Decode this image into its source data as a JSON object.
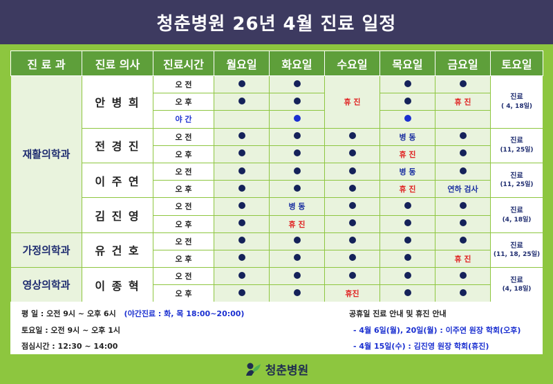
{
  "title": "청춘병원 26년 4월 진료 일정",
  "headers": [
    "진 료 과",
    "진료 의사",
    "진료시간",
    "월요일",
    "화요일",
    "수요일",
    "목요일",
    "금요일",
    "토요일"
  ],
  "depts": {
    "rehab": "재활의학과",
    "family": "가정의학과",
    "imaging": "영상의학과"
  },
  "doctors": {
    "d1": "안 병 희",
    "d2": "전 경 진",
    "d3": "이 주 연",
    "d4": "김 진 영",
    "d5": "유 건 호",
    "d6": "이 종 혁"
  },
  "times": {
    "am": "오 전",
    "pm": "오 후",
    "night": "야 간"
  },
  "statuses": {
    "holiday": "휴 진",
    "holiday2": "휴진",
    "ward": "병 동",
    "exam": "연하 검사"
  },
  "saturday": {
    "d1": {
      "label": "진료",
      "dates": "( 4, 18일)"
    },
    "d2": {
      "label": "진료",
      "dates": "(11, 25일)"
    },
    "d3": {
      "label": "진료",
      "dates": "(11, 25일)"
    },
    "d4": {
      "label": "진료",
      "dates": "(4, 18일)"
    },
    "d5": {
      "label": "진료",
      "dates": "(11, 18, 25일)"
    },
    "d6": {
      "label": "진료",
      "dates": "(4, 18일)"
    }
  },
  "notes": {
    "weekday": "평    일 : 오전 9시 ~ 오후 6시",
    "night_note": "(야간진료 : 화, 목 18:00~20:00)",
    "saturday": "토요일 : 오전 9시 ~ 오후 1시",
    "lunch": "점심시간 : 12:30 ~ 14:00",
    "holiday_title": "공휴일 진료 안내 및 휴진 안내",
    "holiday_1": "- 4월 6일(월), 20일(월) : 이주연 원장 학회(오후)",
    "holiday_2": "- 4월 15일(수) : 김진영 원장 학회(휴진)"
  },
  "footer": {
    "name": "청춘병원"
  },
  "colors": {
    "banner": "#3d3a60",
    "header": "#5e9f3a",
    "background": "#8dc63f",
    "cell": "#e9f3dd",
    "dot": "#15225a",
    "red": "#e02020",
    "blue": "#1a2fd0"
  }
}
